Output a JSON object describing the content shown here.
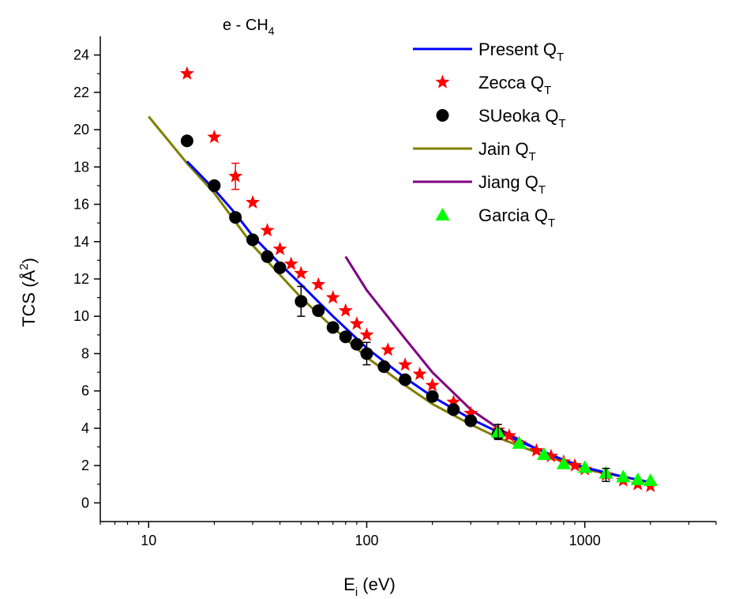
{
  "chart_data": {
    "type": "scatter",
    "title": "e - CH",
    "title_sub": "4",
    "xlabel": "E",
    "xlabel_sub": "i",
    "xlabel_unit": " (eV)",
    "ylabel": "TCS (Å",
    "ylabel_sup": "2",
    "ylabel_end": ")",
    "xscale": "log",
    "xlim": [
      6,
      4000
    ],
    "ylim": [
      -1,
      25
    ],
    "x_ticks": [
      10,
      100,
      1000
    ],
    "x_tick_labels": [
      "10",
      "100",
      "1000"
    ],
    "y_ticks": [
      0,
      2,
      4,
      6,
      8,
      10,
      12,
      14,
      16,
      18,
      20,
      22,
      24
    ],
    "y_tick_labels": [
      "0",
      "2",
      "4",
      "6",
      "8",
      "10",
      "12",
      "14",
      "16",
      "18",
      "20",
      "22",
      "24"
    ],
    "grid": false,
    "legend_position": "top-right",
    "series": [
      {
        "name": "Present Q",
        "name_sub": "T",
        "kind": "line",
        "color": "#0000ff",
        "x": [
          15,
          20,
          25,
          30,
          40,
          50,
          70,
          100,
          150,
          200,
          300,
          400,
          600,
          800,
          1000,
          1500,
          2000
        ],
        "y": [
          18.3,
          16.8,
          15.5,
          14.3,
          12.8,
          11.7,
          10.0,
          8.3,
          6.7,
          5.7,
          4.5,
          3.8,
          2.9,
          2.3,
          1.9,
          1.4,
          1.1
        ]
      },
      {
        "name": "Zecca  Q",
        "name_sub": "T",
        "kind": "marker",
        "marker": "star",
        "color": "#ff0000",
        "x": [
          15,
          20,
          25,
          30,
          35,
          40,
          45,
          50,
          60,
          70,
          80,
          90,
          100,
          125,
          150,
          175,
          200,
          250,
          300,
          400,
          450,
          500,
          600,
          700,
          800,
          900,
          1000,
          1250,
          1500,
          1750,
          2000
        ],
        "y": [
          23.0,
          19.6,
          17.5,
          16.1,
          14.6,
          13.6,
          12.8,
          12.3,
          11.7,
          11.0,
          10.3,
          9.6,
          9.0,
          8.2,
          7.4,
          6.9,
          6.3,
          5.4,
          4.8,
          3.9,
          3.6,
          3.2,
          2.8,
          2.5,
          2.2,
          2.0,
          1.8,
          1.5,
          1.2,
          1.0,
          0.9
        ]
      },
      {
        "name": "SUeoka Q",
        "name_sub": "T",
        "kind": "marker",
        "marker": "circle",
        "color": "#000000",
        "x": [
          15,
          20,
          25,
          30,
          35,
          40,
          50,
          60,
          70,
          80,
          90,
          100,
          120,
          150,
          200,
          250,
          300,
          400
        ],
        "y": [
          19.4,
          17.0,
          15.3,
          14.1,
          13.2,
          12.6,
          10.8,
          10.3,
          9.4,
          8.9,
          8.5,
          8.0,
          7.3,
          6.6,
          5.7,
          5.0,
          4.4,
          3.7
        ]
      },
      {
        "name": "Jain   Q",
        "name_sub": "T",
        "kind": "line",
        "color": "#808000",
        "x": [
          10,
          15,
          20,
          30,
          50,
          70,
          100,
          150,
          200,
          300,
          400,
          600,
          800,
          1000,
          1500,
          2000
        ],
        "y": [
          20.7,
          18.2,
          16.6,
          13.8,
          11.0,
          9.4,
          7.8,
          6.3,
          5.3,
          4.2,
          3.5,
          2.7,
          2.2,
          1.8,
          1.4,
          1.1
        ]
      },
      {
        "name": "Jiang  Q",
        "name_sub": "T",
        "kind": "line",
        "color": "#800080",
        "x": [
          80,
          100,
          150,
          200,
          300,
          400,
          600,
          800
        ],
        "y": [
          13.2,
          11.4,
          8.8,
          7.0,
          5.0,
          4.0,
          2.9,
          2.3
        ]
      },
      {
        "name": "Garcia Q",
        "name_sub": "T",
        "kind": "marker",
        "marker": "triangle",
        "color": "#00ff00",
        "x": [
          400,
          500,
          650,
          800,
          1000,
          1250,
          1500,
          1750,
          2000
        ],
        "y": [
          3.8,
          3.2,
          2.6,
          2.1,
          1.9,
          1.6,
          1.4,
          1.25,
          1.2
        ]
      }
    ],
    "error_bars": [
      {
        "x": 25,
        "y": 17.5,
        "err": 0.7,
        "color": "#ff0000"
      },
      {
        "x": 50,
        "y": 10.8,
        "err": 0.8,
        "color": "#000000"
      },
      {
        "x": 100,
        "y": 8.0,
        "err": 0.6,
        "color": "#000000"
      },
      {
        "x": 400,
        "y": 3.8,
        "err": 0.4,
        "color": "#000000"
      },
      {
        "x": 1250,
        "y": 1.5,
        "err": 0.35,
        "color": "#000000"
      }
    ]
  }
}
